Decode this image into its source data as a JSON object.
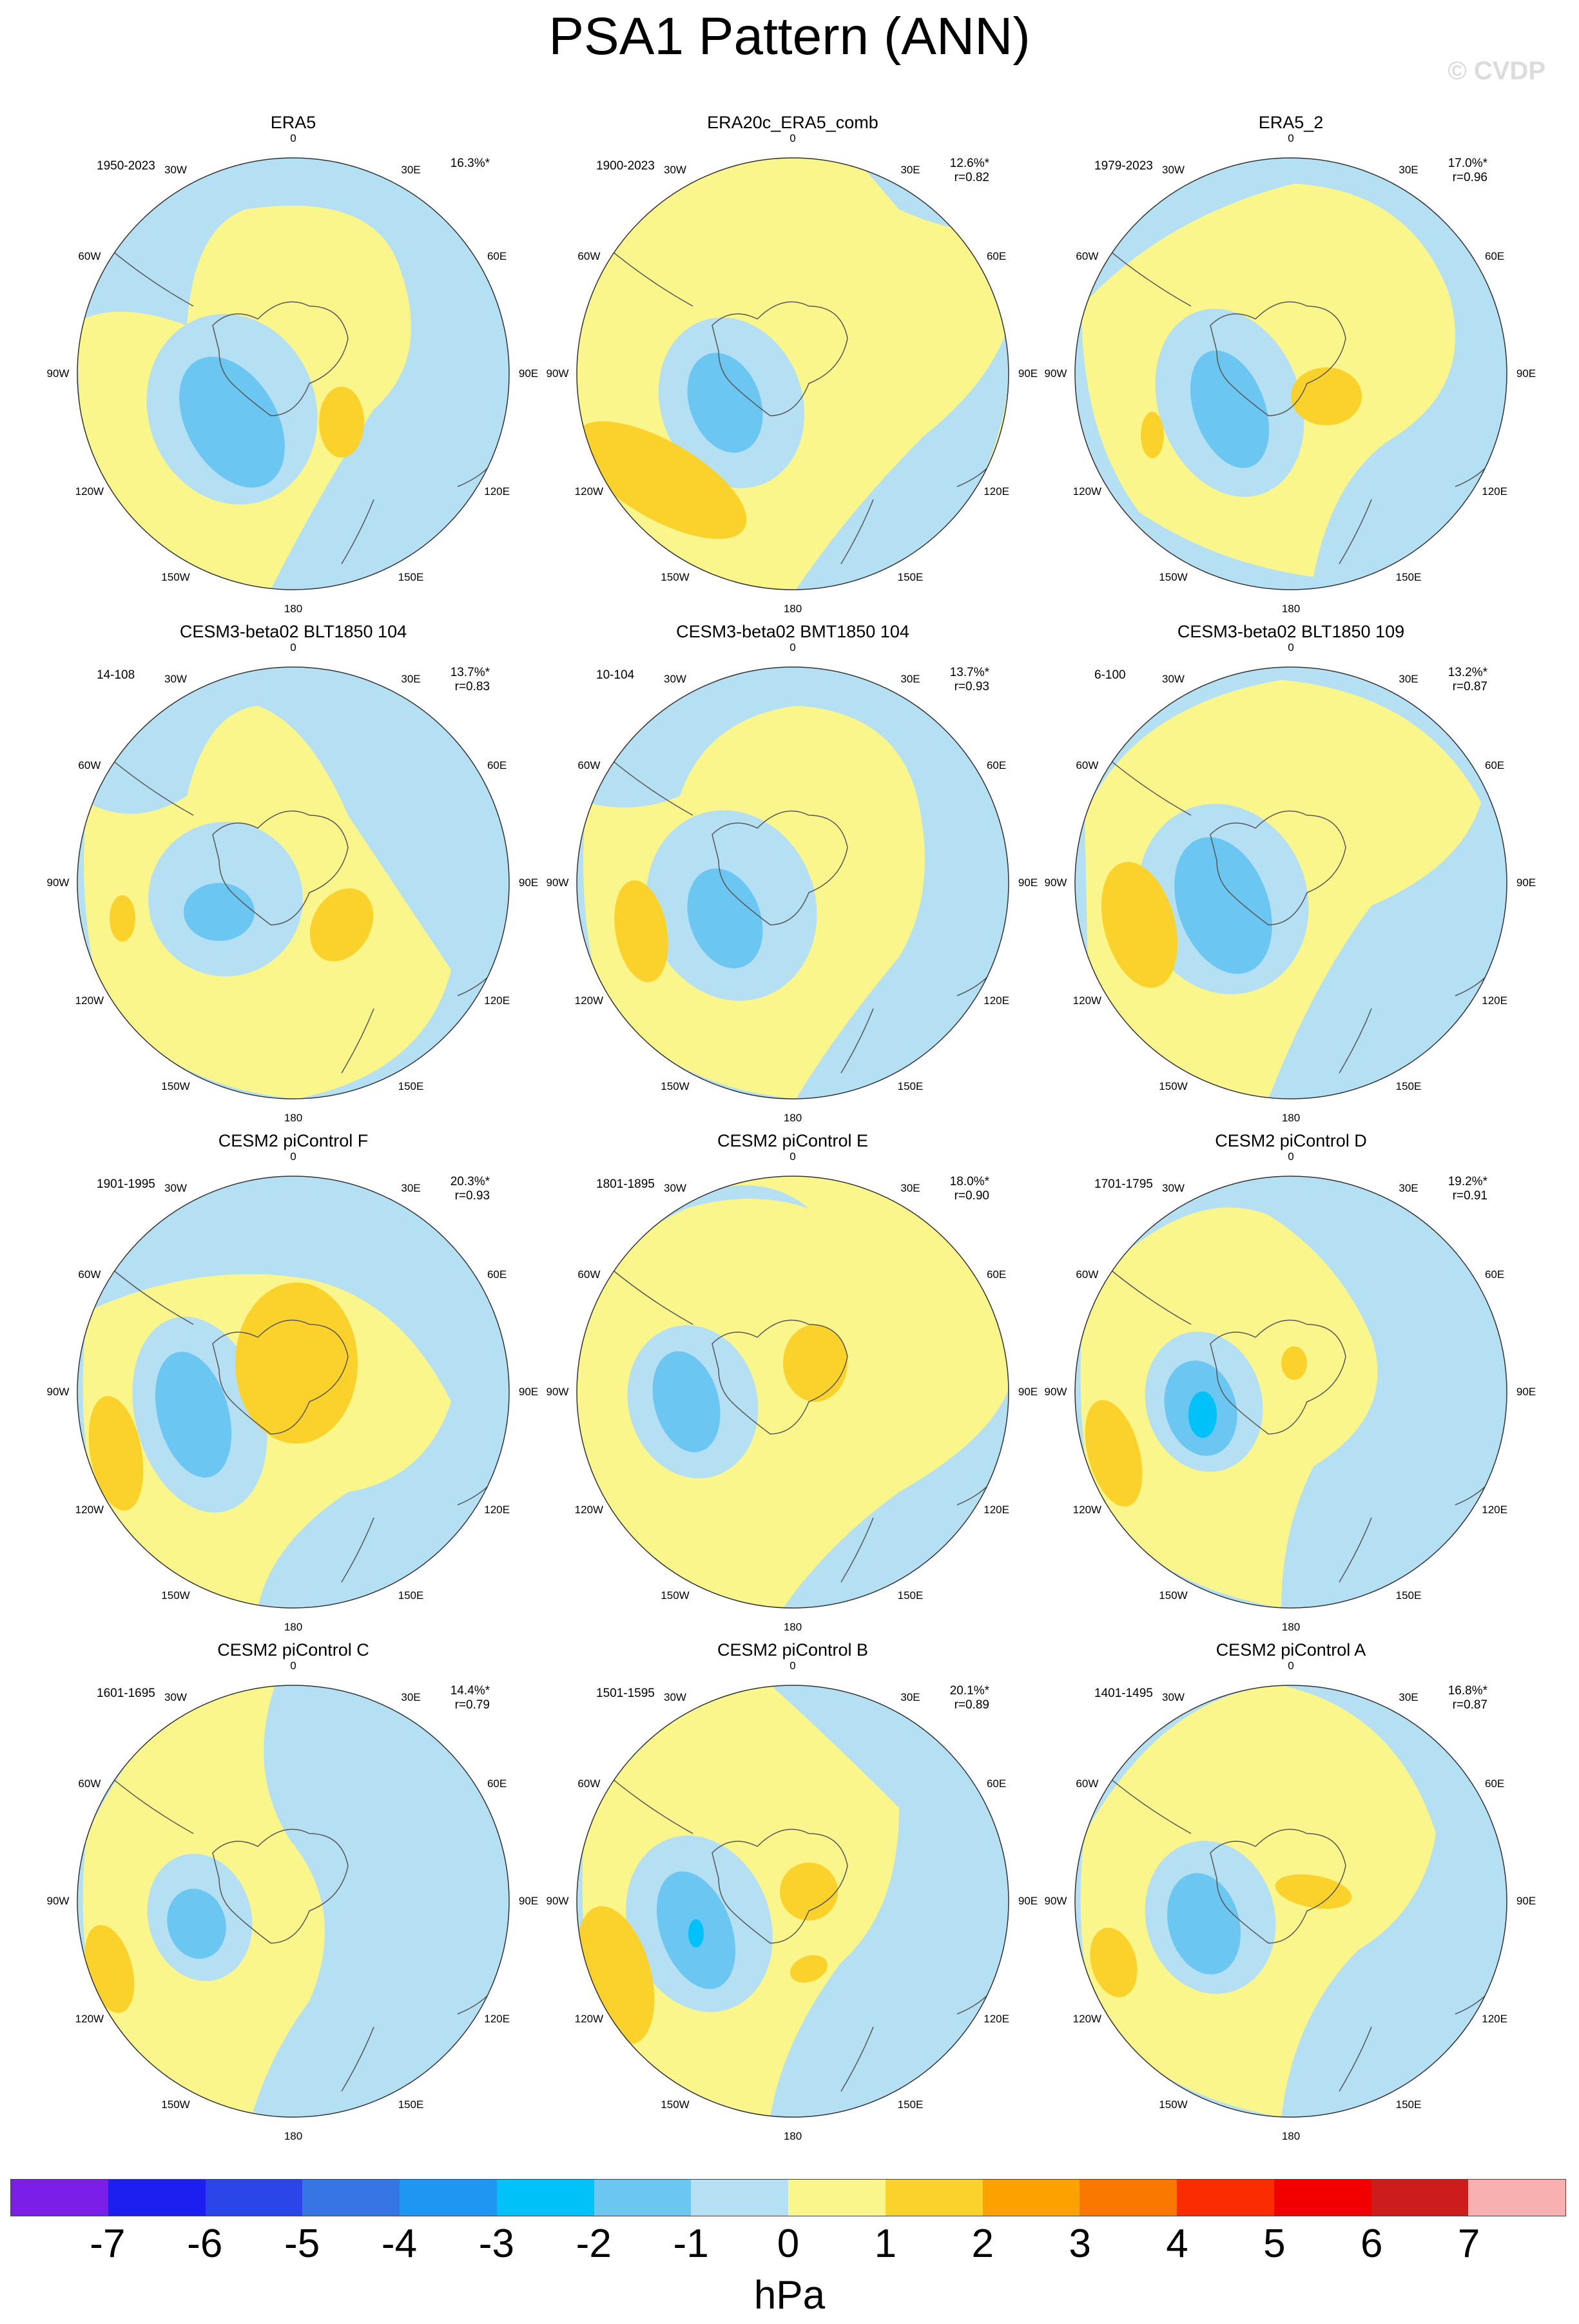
{
  "title": "PSA1 Pattern (ANN)",
  "watermark": "© CVDP",
  "unit": "hPa",
  "colorbar": {
    "colors": [
      "#7b1fe8",
      "#1c1ff0",
      "#2b45e8",
      "#3576e4",
      "#1f96f2",
      "#00c2f8",
      "#6cc6f2",
      "#b5dff3",
      "#fbf68c",
      "#fbd22c",
      "#fba200",
      "#fb7800",
      "#fb2c00",
      "#f20000",
      "#cc1c1c",
      "#f9b0b0"
    ],
    "ticks": [
      "-7",
      "-6",
      "-5",
      "-4",
      "-3",
      "-2",
      "-1",
      "0",
      "1",
      "2",
      "3",
      "4",
      "5",
      "6",
      "7"
    ]
  },
  "lon_labels": [
    "0",
    "30E",
    "60E",
    "90E",
    "120E",
    "150E",
    "180",
    "150W",
    "120W",
    "90W",
    "60W",
    "30W"
  ],
  "panels": [
    {
      "title": "ERA5",
      "years": "1950-2023",
      "pct": "16.3%*",
      "r": ""
    },
    {
      "title": "ERA20c_ERA5_comb",
      "years": "1900-2023",
      "pct": "12.6%*",
      "r": "r=0.82"
    },
    {
      "title": "ERA5_2",
      "years": "1979-2023",
      "pct": "17.0%*",
      "r": "r=0.96"
    },
    {
      "title": "CESM3-beta02 BLT1850 104",
      "years": "14-108",
      "pct": "13.7%*",
      "r": "r=0.83"
    },
    {
      "title": "CESM3-beta02 BMT1850 104",
      "years": "10-104",
      "pct": "13.7%*",
      "r": "r=0.93"
    },
    {
      "title": "CESM3-beta02 BLT1850 109",
      "years": "6-100",
      "pct": "13.2%*",
      "r": "r=0.87"
    },
    {
      "title": "CESM2 piControl F",
      "years": "1901-1995",
      "pct": "20.3%*",
      "r": "r=0.93"
    },
    {
      "title": "CESM2 piControl E",
      "years": "1801-1895",
      "pct": "18.0%*",
      "r": "r=0.90"
    },
    {
      "title": "CESM2 piControl D",
      "years": "1701-1795",
      "pct": "19.2%*",
      "r": "r=0.91"
    },
    {
      "title": "CESM2 piControl C",
      "years": "1601-1695",
      "pct": "14.4%*",
      "r": "r=0.79"
    },
    {
      "title": "CESM2 piControl B",
      "years": "1501-1595",
      "pct": "20.1%*",
      "r": "r=0.89"
    },
    {
      "title": "CESM2 piControl A",
      "years": "1401-1495",
      "pct": "16.8%*",
      "r": "r=0.87"
    }
  ]
}
